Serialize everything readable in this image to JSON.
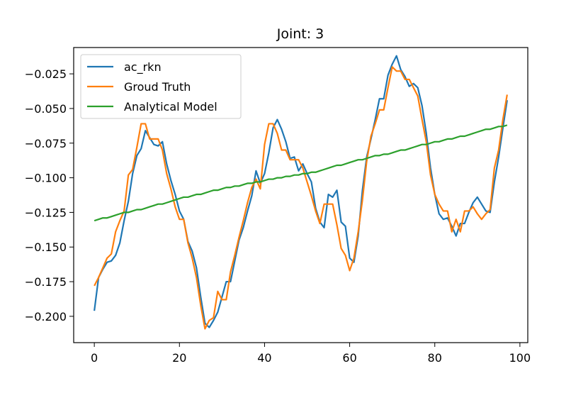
{
  "chart_data": {
    "type": "line",
    "title": "Joint: 3",
    "xlabel": "",
    "ylabel": "",
    "xlim": [
      -4.85,
      101.85
    ],
    "ylim": [
      -0.219,
      -0.006
    ],
    "xticks": [
      0,
      20,
      40,
      60,
      80,
      100
    ],
    "xtick_labels": [
      "0",
      "20",
      "40",
      "60",
      "80",
      "100"
    ],
    "yticks": [
      -0.2,
      -0.175,
      -0.15,
      -0.125,
      -0.1,
      -0.075,
      -0.05,
      -0.025
    ],
    "ytick_labels": [
      "−0.200",
      "−0.175",
      "−0.150",
      "−0.125",
      "−0.100",
      "−0.075",
      "−0.050",
      "−0.025"
    ],
    "grid": false,
    "legend_position": "top-left",
    "series": [
      {
        "name": "ac_rkn",
        "color": "#1f77b4",
        "x": [
          0,
          1,
          2,
          3,
          4,
          5,
          6,
          7,
          8,
          9,
          10,
          11,
          12,
          13,
          14,
          15,
          16,
          17,
          18,
          19,
          20,
          21,
          22,
          23,
          24,
          25,
          26,
          27,
          28,
          29,
          30,
          31,
          32,
          33,
          34,
          35,
          36,
          37,
          38,
          39,
          40,
          41,
          42,
          43,
          44,
          45,
          46,
          47,
          48,
          49,
          50,
          51,
          52,
          53,
          54,
          55,
          56,
          57,
          58,
          59,
          60,
          61,
          62,
          63,
          64,
          65,
          66,
          67,
          68,
          69,
          70,
          71,
          72,
          73,
          74,
          75,
          76,
          77,
          78,
          79,
          80,
          81,
          82,
          83,
          84,
          85,
          86,
          87,
          88,
          89,
          90,
          91,
          92,
          93,
          94,
          95,
          96,
          97
        ],
        "y": [
          -0.196,
          -0.172,
          -0.166,
          -0.161,
          -0.16,
          -0.156,
          -0.147,
          -0.131,
          -0.117,
          -0.097,
          -0.084,
          -0.079,
          -0.066,
          -0.071,
          -0.076,
          -0.077,
          -0.074,
          -0.09,
          -0.102,
          -0.112,
          -0.124,
          -0.13,
          -0.146,
          -0.153,
          -0.165,
          -0.186,
          -0.205,
          -0.208,
          -0.203,
          -0.197,
          -0.186,
          -0.175,
          -0.175,
          -0.16,
          -0.145,
          -0.136,
          -0.124,
          -0.113,
          -0.095,
          -0.104,
          -0.097,
          -0.082,
          -0.064,
          -0.058,
          -0.065,
          -0.074,
          -0.086,
          -0.085,
          -0.095,
          -0.09,
          -0.097,
          -0.103,
          -0.122,
          -0.132,
          -0.136,
          -0.112,
          -0.114,
          -0.109,
          -0.132,
          -0.135,
          -0.158,
          -0.161,
          -0.142,
          -0.109,
          -0.085,
          -0.072,
          -0.058,
          -0.043,
          -0.043,
          -0.026,
          -0.018,
          -0.012,
          -0.022,
          -0.027,
          -0.034,
          -0.032,
          -0.035,
          -0.048,
          -0.068,
          -0.093,
          -0.112,
          -0.126,
          -0.13,
          -0.129,
          -0.135,
          -0.142,
          -0.133,
          -0.133,
          -0.125,
          -0.118,
          -0.114,
          -0.119,
          -0.124,
          -0.125,
          -0.103,
          -0.085,
          -0.064,
          -0.044
        ]
      },
      {
        "name": "Groud Truth",
        "color": "#ff7f0e",
        "x": [
          0,
          1,
          2,
          3,
          4,
          5,
          6,
          7,
          8,
          9,
          10,
          11,
          12,
          13,
          14,
          15,
          16,
          17,
          18,
          19,
          20,
          21,
          22,
          23,
          24,
          25,
          26,
          27,
          28,
          29,
          30,
          31,
          32,
          33,
          34,
          35,
          36,
          37,
          38,
          39,
          40,
          41,
          42,
          43,
          44,
          45,
          46,
          47,
          48,
          49,
          50,
          51,
          52,
          53,
          54,
          55,
          56,
          57,
          58,
          59,
          60,
          61,
          62,
          63,
          64,
          65,
          66,
          67,
          68,
          69,
          70,
          71,
          72,
          73,
          74,
          75,
          76,
          77,
          78,
          79,
          80,
          81,
          82,
          83,
          84,
          85,
          86,
          87,
          88,
          89,
          90,
          91,
          92,
          93,
          94,
          95,
          96,
          97
        ],
        "y": [
          -0.178,
          -0.172,
          -0.165,
          -0.158,
          -0.155,
          -0.139,
          -0.131,
          -0.124,
          -0.098,
          -0.094,
          -0.078,
          -0.061,
          -0.061,
          -0.072,
          -0.072,
          -0.072,
          -0.08,
          -0.097,
          -0.108,
          -0.121,
          -0.13,
          -0.13,
          -0.147,
          -0.158,
          -0.172,
          -0.192,
          -0.209,
          -0.203,
          -0.201,
          -0.182,
          -0.188,
          -0.188,
          -0.168,
          -0.156,
          -0.143,
          -0.131,
          -0.118,
          -0.107,
          -0.101,
          -0.108,
          -0.076,
          -0.061,
          -0.061,
          -0.068,
          -0.08,
          -0.08,
          -0.087,
          -0.087,
          -0.087,
          -0.093,
          -0.103,
          -0.113,
          -0.124,
          -0.133,
          -0.119,
          -0.119,
          -0.119,
          -0.134,
          -0.151,
          -0.156,
          -0.167,
          -0.158,
          -0.139,
          -0.116,
          -0.088,
          -0.07,
          -0.061,
          -0.051,
          -0.051,
          -0.035,
          -0.02,
          -0.023,
          -0.023,
          -0.029,
          -0.029,
          -0.035,
          -0.041,
          -0.058,
          -0.074,
          -0.098,
          -0.112,
          -0.119,
          -0.124,
          -0.124,
          -0.139,
          -0.13,
          -0.139,
          -0.124,
          -0.124,
          -0.121,
          -0.126,
          -0.13,
          -0.126,
          -0.123,
          -0.093,
          -0.08,
          -0.058,
          -0.04
        ]
      },
      {
        "name": "Analytical Model",
        "color": "#2ca02c",
        "x": [
          0,
          1,
          2,
          3,
          4,
          5,
          6,
          7,
          8,
          9,
          10,
          11,
          12,
          13,
          14,
          15,
          16,
          17,
          18,
          19,
          20,
          21,
          22,
          23,
          24,
          25,
          26,
          27,
          28,
          29,
          30,
          31,
          32,
          33,
          34,
          35,
          36,
          37,
          38,
          39,
          40,
          41,
          42,
          43,
          44,
          45,
          46,
          47,
          48,
          49,
          50,
          51,
          52,
          53,
          54,
          55,
          56,
          57,
          58,
          59,
          60,
          61,
          62,
          63,
          64,
          65,
          66,
          67,
          68,
          69,
          70,
          71,
          72,
          73,
          74,
          75,
          76,
          77,
          78,
          79,
          80,
          81,
          82,
          83,
          84,
          85,
          86,
          87,
          88,
          89,
          90,
          91,
          92,
          93,
          94,
          95,
          96,
          97
        ],
        "y": [
          -0.131,
          -0.13,
          -0.129,
          -0.129,
          -0.128,
          -0.127,
          -0.126,
          -0.125,
          -0.125,
          -0.124,
          -0.123,
          -0.123,
          -0.122,
          -0.121,
          -0.12,
          -0.119,
          -0.119,
          -0.118,
          -0.117,
          -0.116,
          -0.115,
          -0.114,
          -0.114,
          -0.113,
          -0.112,
          -0.112,
          -0.111,
          -0.11,
          -0.109,
          -0.109,
          -0.108,
          -0.107,
          -0.107,
          -0.106,
          -0.106,
          -0.105,
          -0.104,
          -0.104,
          -0.103,
          -0.103,
          -0.102,
          -0.101,
          -0.101,
          -0.1,
          -0.1,
          -0.099,
          -0.099,
          -0.098,
          -0.098,
          -0.097,
          -0.097,
          -0.096,
          -0.096,
          -0.095,
          -0.094,
          -0.093,
          -0.092,
          -0.091,
          -0.091,
          -0.09,
          -0.089,
          -0.088,
          -0.087,
          -0.087,
          -0.086,
          -0.085,
          -0.084,
          -0.084,
          -0.083,
          -0.083,
          -0.082,
          -0.081,
          -0.08,
          -0.08,
          -0.079,
          -0.078,
          -0.077,
          -0.076,
          -0.076,
          -0.075,
          -0.074,
          -0.074,
          -0.073,
          -0.072,
          -0.072,
          -0.071,
          -0.07,
          -0.07,
          -0.069,
          -0.068,
          -0.067,
          -0.066,
          -0.065,
          -0.065,
          -0.064,
          -0.063,
          -0.063,
          -0.062
        ]
      }
    ]
  }
}
